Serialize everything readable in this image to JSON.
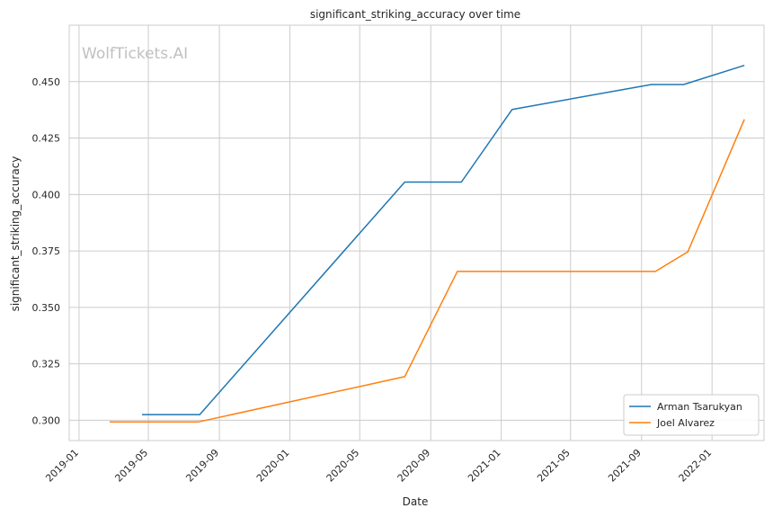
{
  "chart_data": {
    "type": "line",
    "title": "significant_striking_accuracy over time",
    "xlabel": "Date",
    "ylabel": "significant_striking_accuracy",
    "watermark": "WolfTickets.AI",
    "x_ticks": [
      "2019-01",
      "2019-05",
      "2019-09",
      "2020-01",
      "2020-05",
      "2020-09",
      "2021-01",
      "2021-05",
      "2021-09",
      "2022-01"
    ],
    "y_ticks": [
      "0.300",
      "0.325",
      "0.350",
      "0.375",
      "0.400",
      "0.425",
      "0.450"
    ],
    "xlim": [
      "2018-12-15",
      "2022-04-01"
    ],
    "ylim": [
      0.291,
      0.475
    ],
    "grid": true,
    "legend_position": "bottom-right",
    "series": [
      {
        "name": "Arman Tsarukyan",
        "color": "#1f77b4",
        "points": [
          {
            "x": "2019-04-20",
            "y": 0.3025
          },
          {
            "x": "2019-07-29",
            "y": 0.3025
          },
          {
            "x": "2020-07-18",
            "y": 0.4055
          },
          {
            "x": "2020-10-24",
            "y": 0.4055
          },
          {
            "x": "2021-01-20",
            "y": 0.4377
          },
          {
            "x": "2021-09-18",
            "y": 0.4487
          },
          {
            "x": "2021-11-13",
            "y": 0.4487
          },
          {
            "x": "2022-02-26",
            "y": 0.4572
          }
        ]
      },
      {
        "name": "Joel Alvarez",
        "color": "#ff7f0e",
        "points": [
          {
            "x": "2019-02-23",
            "y": 0.2993
          },
          {
            "x": "2019-07-27",
            "y": 0.2993
          },
          {
            "x": "2020-07-18",
            "y": 0.3193
          },
          {
            "x": "2020-10-17",
            "y": 0.3659
          },
          {
            "x": "2021-09-25",
            "y": 0.3659
          },
          {
            "x": "2021-11-20",
            "y": 0.3746
          },
          {
            "x": "2022-02-26",
            "y": 0.4333
          }
        ]
      }
    ]
  }
}
